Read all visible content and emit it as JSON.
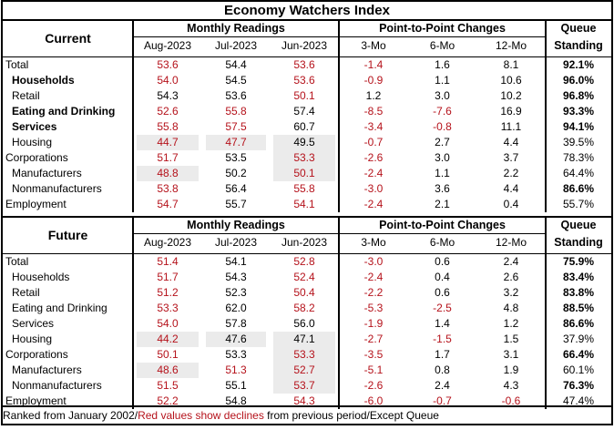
{
  "title": "Economy Watchers Index",
  "groups": {
    "monthly": "Monthly Readings",
    "changes": "Point-to-Point Changes",
    "queue_top": "Queue",
    "queue_bottom": "Standing"
  },
  "columns": [
    "Aug-2023",
    "Jul-2023",
    "Jun-2023",
    "3-Mo",
    "6-Mo",
    "12-Mo"
  ],
  "sections": [
    {
      "name": "Current",
      "rows": [
        {
          "label": "Total",
          "style": "plain",
          "values": [
            "53.6",
            "54.4",
            "53.6",
            "-1.4",
            "1.6",
            "8.1"
          ],
          "queue": "92.1%",
          "queue_bold": true,
          "red": [
            true,
            false,
            true,
            true,
            false,
            false
          ],
          "shade": [
            false,
            false,
            false,
            false,
            false,
            false
          ]
        },
        {
          "label": "Households",
          "style": "bold-indent",
          "values": [
            "54.0",
            "54.5",
            "53.6",
            "-0.9",
            "1.1",
            "10.6"
          ],
          "queue": "96.0%",
          "queue_bold": true,
          "red": [
            true,
            false,
            true,
            true,
            false,
            false
          ],
          "shade": [
            false,
            false,
            false,
            false,
            false,
            false
          ]
        },
        {
          "label": "Retail",
          "style": "indent",
          "values": [
            "54.3",
            "53.6",
            "50.1",
            "1.2",
            "3.0",
            "10.2"
          ],
          "queue": "96.8%",
          "queue_bold": true,
          "red": [
            false,
            false,
            true,
            false,
            false,
            false
          ],
          "shade": [
            false,
            false,
            false,
            false,
            false,
            false
          ]
        },
        {
          "label": "Eating and Drinking",
          "style": "bold-indent",
          "values": [
            "52.6",
            "55.8",
            "57.4",
            "-8.5",
            "-7.6",
            "16.9"
          ],
          "queue": "93.3%",
          "queue_bold": true,
          "red": [
            true,
            true,
            false,
            true,
            true,
            false
          ],
          "shade": [
            false,
            false,
            false,
            false,
            false,
            false
          ]
        },
        {
          "label": "Services",
          "style": "bold-indent",
          "values": [
            "55.8",
            "57.5",
            "60.7",
            "-3.4",
            "-0.8",
            "11.1"
          ],
          "queue": "94.1%",
          "queue_bold": true,
          "red": [
            true,
            true,
            false,
            true,
            true,
            false
          ],
          "shade": [
            false,
            false,
            false,
            false,
            false,
            false
          ]
        },
        {
          "label": "Housing",
          "style": "indent",
          "values": [
            "44.7",
            "47.7",
            "49.5",
            "-0.7",
            "2.7",
            "4.4"
          ],
          "queue": "39.5%",
          "queue_bold": false,
          "red": [
            true,
            true,
            false,
            true,
            false,
            false
          ],
          "shade": [
            true,
            true,
            true,
            false,
            false,
            false
          ]
        },
        {
          "label": "Corporations",
          "style": "plain",
          "values": [
            "51.7",
            "53.5",
            "53.3",
            "-2.6",
            "3.0",
            "3.7"
          ],
          "queue": "78.3%",
          "queue_bold": false,
          "red": [
            true,
            false,
            true,
            true,
            false,
            false
          ],
          "shade": [
            false,
            false,
            true,
            false,
            false,
            false
          ]
        },
        {
          "label": "Manufacturers",
          "style": "indent",
          "values": [
            "48.8",
            "50.2",
            "50.1",
            "-2.4",
            "1.1",
            "2.2"
          ],
          "queue": "64.4%",
          "queue_bold": false,
          "red": [
            true,
            false,
            true,
            true,
            false,
            false
          ],
          "shade": [
            true,
            false,
            true,
            false,
            false,
            false
          ]
        },
        {
          "label": "Nonmanufacturers",
          "style": "indent",
          "values": [
            "53.8",
            "56.4",
            "55.8",
            "-3.0",
            "3.6",
            "4.4"
          ],
          "queue": "86.6%",
          "queue_bold": true,
          "red": [
            true,
            false,
            true,
            true,
            false,
            false
          ],
          "shade": [
            false,
            false,
            false,
            false,
            false,
            false
          ]
        },
        {
          "label": "Employment",
          "style": "plain",
          "values": [
            "54.7",
            "55.7",
            "54.1",
            "-2.4",
            "2.1",
            "0.4"
          ],
          "queue": "55.7%",
          "queue_bold": false,
          "red": [
            true,
            false,
            true,
            true,
            false,
            false
          ],
          "shade": [
            false,
            false,
            false,
            false,
            false,
            false
          ]
        }
      ]
    },
    {
      "name": "Future",
      "rows": [
        {
          "label": "Total",
          "style": "plain",
          "values": [
            "51.4",
            "54.1",
            "52.8",
            "-3.0",
            "0.6",
            "2.4"
          ],
          "queue": "75.9%",
          "queue_bold": true,
          "red": [
            true,
            false,
            true,
            true,
            false,
            false
          ],
          "shade": [
            false,
            false,
            false,
            false,
            false,
            false
          ]
        },
        {
          "label": "Households",
          "style": "indent",
          "values": [
            "51.7",
            "54.3",
            "52.4",
            "-2.4",
            "0.4",
            "2.6"
          ],
          "queue": "83.4%",
          "queue_bold": true,
          "red": [
            true,
            false,
            true,
            true,
            false,
            false
          ],
          "shade": [
            false,
            false,
            false,
            false,
            false,
            false
          ]
        },
        {
          "label": "Retail",
          "style": "indent",
          "values": [
            "51.2",
            "52.3",
            "50.4",
            "-2.2",
            "0.6",
            "3.2"
          ],
          "queue": "83.8%",
          "queue_bold": true,
          "red": [
            true,
            false,
            true,
            true,
            false,
            false
          ],
          "shade": [
            false,
            false,
            false,
            false,
            false,
            false
          ]
        },
        {
          "label": "Eating and Drinking",
          "style": "indent",
          "values": [
            "53.3",
            "62.0",
            "58.2",
            "-5.3",
            "-2.5",
            "4.8"
          ],
          "queue": "88.5%",
          "queue_bold": true,
          "red": [
            true,
            false,
            true,
            true,
            true,
            false
          ],
          "shade": [
            false,
            false,
            false,
            false,
            false,
            false
          ]
        },
        {
          "label": "Services",
          "style": "indent",
          "values": [
            "54.0",
            "57.8",
            "56.0",
            "-1.9",
            "1.4",
            "1.2"
          ],
          "queue": "86.6%",
          "queue_bold": true,
          "red": [
            true,
            false,
            false,
            true,
            false,
            false
          ],
          "shade": [
            false,
            false,
            false,
            false,
            false,
            false
          ]
        },
        {
          "label": "Housing",
          "style": "indent",
          "values": [
            "44.2",
            "47.6",
            "47.1",
            "-2.7",
            "-1.5",
            "1.5"
          ],
          "queue": "37.9%",
          "queue_bold": false,
          "red": [
            true,
            false,
            false,
            true,
            true,
            false
          ],
          "shade": [
            true,
            true,
            true,
            false,
            false,
            false
          ]
        },
        {
          "label": "Corporations",
          "style": "plain",
          "values": [
            "50.1",
            "53.3",
            "53.3",
            "-3.5",
            "1.7",
            "3.1"
          ],
          "queue": "66.4%",
          "queue_bold": true,
          "red": [
            true,
            false,
            true,
            true,
            false,
            false
          ],
          "shade": [
            false,
            false,
            true,
            false,
            false,
            false
          ]
        },
        {
          "label": "Manufacturers",
          "style": "indent",
          "values": [
            "48.6",
            "51.3",
            "52.7",
            "-5.1",
            "0.8",
            "1.9"
          ],
          "queue": "60.1%",
          "queue_bold": false,
          "red": [
            true,
            true,
            true,
            true,
            false,
            false
          ],
          "shade": [
            true,
            false,
            true,
            false,
            false,
            false
          ]
        },
        {
          "label": "Nonmanufacturers",
          "style": "indent",
          "values": [
            "51.5",
            "55.1",
            "53.7",
            "-2.6",
            "2.4",
            "4.3"
          ],
          "queue": "76.3%",
          "queue_bold": true,
          "red": [
            true,
            false,
            true,
            true,
            false,
            false
          ],
          "shade": [
            false,
            false,
            true,
            false,
            false,
            false
          ]
        },
        {
          "label": "Employment",
          "style": "plain",
          "values": [
            "52.2",
            "54.8",
            "54.3",
            "-6.0",
            "-0.7",
            "-0.6"
          ],
          "queue": "47.4%",
          "queue_bold": false,
          "red": [
            true,
            false,
            true,
            true,
            true,
            true
          ],
          "shade": [
            false,
            false,
            false,
            false,
            false,
            false
          ]
        }
      ]
    }
  ],
  "footer": {
    "part1": "Ranked from January 2002/",
    "part2": "Red values show declines",
    "part3": " from previous period/Except Queue"
  },
  "colors": {
    "decline": "#b5121b",
    "shade": "#ebebeb"
  }
}
